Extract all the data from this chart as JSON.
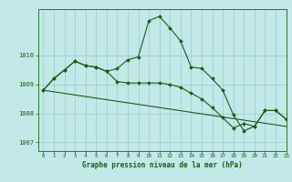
{
  "title": "Graphe pression niveau de la mer (hPa)",
  "bg_color": "#c2e8e8",
  "grid_color": "#a0d0d0",
  "line_color": "#1a5c1a",
  "xlim": [
    -0.5,
    23
  ],
  "ylim": [
    1006.7,
    1011.6
  ],
  "yticks": [
    1007,
    1008,
    1009,
    1010
  ],
  "xticks": [
    0,
    1,
    2,
    3,
    4,
    5,
    6,
    7,
    8,
    9,
    10,
    11,
    12,
    13,
    14,
    15,
    16,
    17,
    18,
    19,
    20,
    21,
    22,
    23
  ],
  "series1_x": [
    0,
    1,
    2,
    3,
    4,
    5,
    6,
    7,
    8,
    9,
    10,
    11,
    12,
    13,
    14,
    15,
    16,
    17,
    18,
    19,
    20,
    21,
    22,
    23
  ],
  "series1_y": [
    1008.8,
    1009.2,
    1009.5,
    1009.8,
    1009.65,
    1009.6,
    1009.45,
    1009.55,
    1009.85,
    1009.95,
    1011.2,
    1011.35,
    1010.95,
    1010.5,
    1009.6,
    1009.55,
    1009.2,
    1008.8,
    1007.95,
    1007.4,
    1007.55,
    1008.1,
    1008.1,
    1007.8
  ],
  "series2_x": [
    0,
    1,
    2,
    3,
    4,
    5,
    6,
    7,
    8,
    9,
    10,
    11,
    12,
    13,
    14,
    15,
    16,
    17,
    18,
    19,
    20,
    21,
    22,
    23
  ],
  "series2_y": [
    1008.8,
    1009.2,
    1009.5,
    1009.8,
    1009.65,
    1009.6,
    1009.45,
    1009.1,
    1009.05,
    1009.05,
    1009.05,
    1009.05,
    1009.0,
    1008.9,
    1008.7,
    1008.5,
    1008.2,
    1007.85,
    1007.5,
    1007.65,
    1007.55,
    1008.1,
    1008.1,
    1007.8
  ],
  "series3_x": [
    0,
    23
  ],
  "series3_y": [
    1008.8,
    1007.55
  ]
}
